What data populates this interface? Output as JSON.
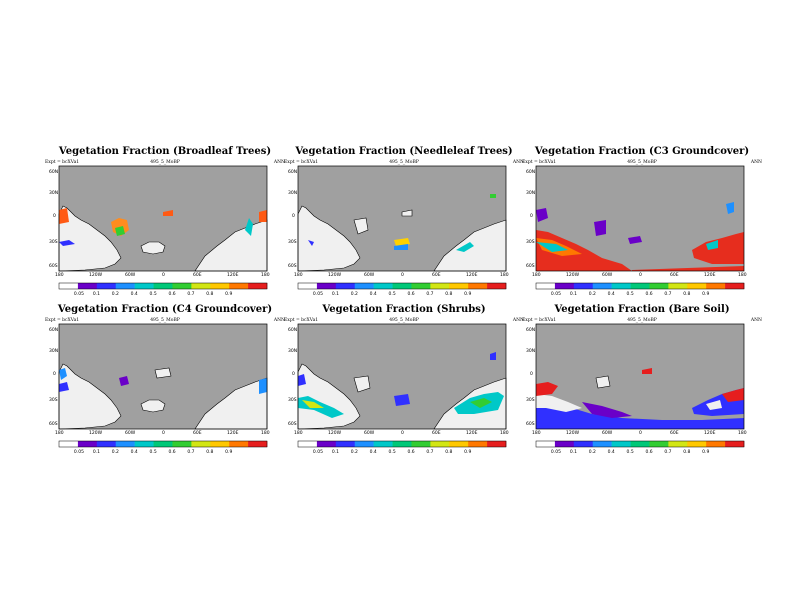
{
  "figure": {
    "experiment_label": "Expt = bcXVa1",
    "case_label": "495_5_MoBP",
    "period_label": "ANN",
    "lat_ticks": [
      "60N",
      "30N",
      "0",
      "30S",
      "60S"
    ],
    "lon_ticks": [
      "180",
      "120W",
      "60W",
      "0",
      "60E",
      "120E",
      "180"
    ]
  },
  "colors": {
    "ocean": "#a0a0a0",
    "land_low": "#f0f0f0",
    "colorbar": [
      "#ffffff",
      "#6a00c8",
      "#3030ff",
      "#1e90ff",
      "#00c8c8",
      "#00c878",
      "#32cd32",
      "#d2e614",
      "#ffc800",
      "#ff7800",
      "#e61e1e"
    ]
  },
  "chart_data": [
    {
      "type": "heatmap",
      "title": "Vegetation Fraction (Broadleaf Trees)",
      "colorbar_ticks": [
        "0.05",
        "0.1",
        "0.2",
        "0.4",
        "0.5",
        "0.6",
        "0.7",
        "0.8",
        "0.9"
      ],
      "ylim": [
        -60,
        60
      ],
      "xlim": [
        -180,
        180
      ]
    },
    {
      "type": "heatmap",
      "title": "Vegetation Fraction (Needleleaf Trees)",
      "colorbar_ticks": [
        "0.05",
        "0.1",
        "0.2",
        "0.4",
        "0.5",
        "0.6",
        "0.7",
        "0.8",
        "0.9"
      ],
      "ylim": [
        -60,
        60
      ],
      "xlim": [
        -180,
        180
      ]
    },
    {
      "type": "heatmap",
      "title": "Vegetation Fraction (C3 Groundcover)",
      "colorbar_ticks": [
        "0.05",
        "0.1",
        "0.2",
        "0.4",
        "0.5",
        "0.6",
        "0.7",
        "0.8",
        "0.9"
      ],
      "ylim": [
        -60,
        60
      ],
      "xlim": [
        -180,
        180
      ]
    },
    {
      "type": "heatmap",
      "title": "Vegetation Fraction (C4 Groundcover)",
      "colorbar_ticks": [
        "0.05",
        "0.1",
        "0.2",
        "0.4",
        "0.5",
        "0.6",
        "0.7",
        "0.8",
        "0.9"
      ],
      "ylim": [
        -60,
        60
      ],
      "xlim": [
        -180,
        180
      ]
    },
    {
      "type": "heatmap",
      "title": "Vegetation Fraction (Shrubs)",
      "colorbar_ticks": [
        "0.05",
        "0.1",
        "0.2",
        "0.4",
        "0.5",
        "0.6",
        "0.7",
        "0.8",
        "0.9"
      ],
      "ylim": [
        -60,
        60
      ],
      "xlim": [
        -180,
        180
      ]
    },
    {
      "type": "heatmap",
      "title": "Vegetation Fraction (Bare Soil)",
      "colorbar_ticks": [
        "0.05",
        "0.1",
        "0.2",
        "0.4",
        "0.5",
        "0.6",
        "0.7",
        "0.8",
        "0.9"
      ],
      "ylim": [
        -60,
        60
      ],
      "xlim": [
        -180,
        180
      ]
    }
  ]
}
